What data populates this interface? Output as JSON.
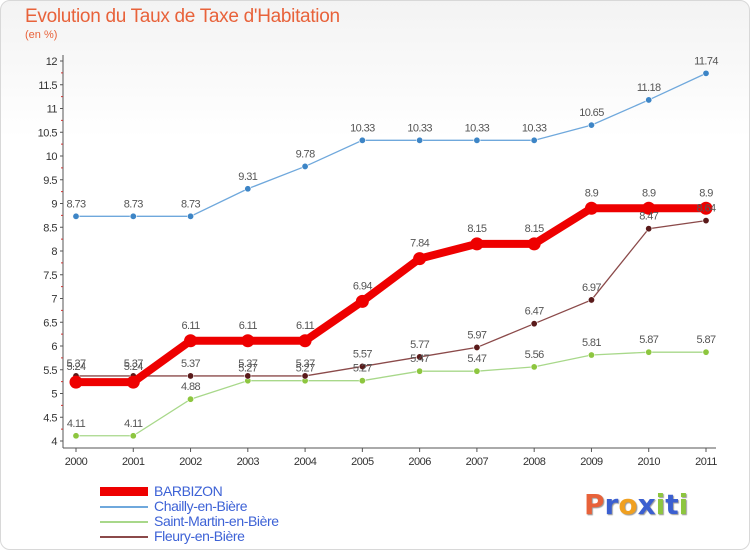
{
  "title": "Evolution du Taux de Taxe d'Habitation",
  "subtitle": "(en %)",
  "logo": {
    "text": "Proxiti",
    "letters": [
      "P",
      "r",
      "o",
      "x",
      "i",
      "t",
      "i"
    ],
    "colors": [
      "#e8623a",
      "#3b5fd0",
      "#f0a020",
      "#3b5fd0",
      "#8dc63f",
      "#3b5fd0",
      "#8dc63f"
    ]
  },
  "chart_data": {
    "type": "line",
    "title": "Evolution du Taux de Taxe d'Habitation",
    "ylabel": "(en %)",
    "xlabel": "",
    "x": [
      "2000",
      "2001",
      "2002",
      "2003",
      "2004",
      "2005",
      "2006",
      "2007",
      "2008",
      "2009",
      "2010",
      "2011"
    ],
    "ylim": [
      4,
      12
    ],
    "yticks": [
      "4",
      "4.5",
      "5",
      "5.5",
      "6",
      "6.5",
      "7",
      "7.5",
      "8",
      "8.5",
      "9",
      "9.5",
      "10",
      "10.5",
      "11",
      "11.5",
      "12"
    ],
    "grid": false,
    "legend_position": "bottom-left",
    "series": [
      {
        "name": "BARBIZON",
        "color": "#ee0000",
        "thick": true,
        "values": [
          5.24,
          5.24,
          6.11,
          6.11,
          6.11,
          6.94,
          7.84,
          8.15,
          8.15,
          8.9,
          8.9,
          8.9
        ],
        "labels": [
          "5.24",
          "5.24",
          "6.11",
          "6.11",
          "6.11",
          "6.94",
          "7.84",
          "8.15",
          "8.15",
          "8.9",
          "8.9",
          "8.9"
        ]
      },
      {
        "name": "Chailly-en-Bière",
        "color": "#6fa8dc",
        "dot": "#3d85c6",
        "values": [
          8.73,
          8.73,
          8.73,
          9.31,
          9.78,
          10.33,
          10.33,
          10.33,
          10.33,
          10.65,
          11.18,
          11.74
        ],
        "labels": [
          "8.73",
          "8.73",
          "8.73",
          "9.31",
          "9.78",
          "10.33",
          "10.33",
          "10.33",
          "10.33",
          "10.65",
          "11.18",
          "11.74"
        ]
      },
      {
        "name": "Saint-Martin-en-Bière",
        "color": "#a8d88a",
        "dot": "#8dc63f",
        "values": [
          4.11,
          4.11,
          4.88,
          5.27,
          5.27,
          5.27,
          5.47,
          5.47,
          5.56,
          5.81,
          5.87,
          5.87
        ],
        "labels": [
          "4.11",
          "4.11",
          "4.88",
          "5.27",
          "5.27",
          "5.27",
          "5.47",
          "5.47",
          "5.56",
          "5.81",
          "5.87",
          "5.87"
        ]
      },
      {
        "name": "Fleury-en-Bière",
        "color": "#8b4a4a",
        "dot": "#5a1a1a",
        "values": [
          5.37,
          5.37,
          5.37,
          5.37,
          5.37,
          5.57,
          5.77,
          5.97,
          6.47,
          6.97,
          8.47,
          8.64
        ],
        "labels": [
          "5.37",
          "5.37",
          "5.37",
          "5.37",
          "5.37",
          "5.57",
          "5.77",
          "5.97",
          "6.47",
          "6.97",
          "8.47",
          "8.64"
        ]
      }
    ]
  }
}
